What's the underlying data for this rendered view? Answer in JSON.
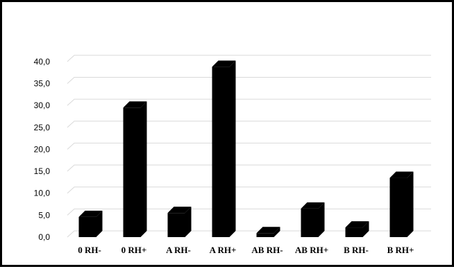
{
  "chart_data": {
    "type": "bar",
    "style": "3d-column",
    "categories": [
      "0 RH-",
      "0 RH+",
      "A RH-",
      "A RH+",
      "AB RH-",
      "AB RH+",
      "B RH-",
      "B RH+"
    ],
    "values": [
      4.6,
      29.5,
      5.5,
      38.8,
      0.9,
      6.5,
      2.2,
      13.5
    ],
    "ylim": [
      0,
      40
    ],
    "yticks": [
      0,
      5,
      10,
      15,
      20,
      25,
      30,
      35,
      40
    ],
    "ytick_labels": [
      "0,0",
      "5,0",
      "10,0",
      "15,0",
      "20,0",
      "25,0",
      "30,0",
      "35,0",
      "40,0"
    ],
    "grid": true,
    "legend": "none",
    "title": "",
    "xlabel": "",
    "ylabel": "",
    "colors": {
      "bar_front": "#000000",
      "bar_side": "#000000",
      "bar_top": "#000000",
      "grid": "#d9d9d9",
      "frame": "#000000"
    }
  }
}
